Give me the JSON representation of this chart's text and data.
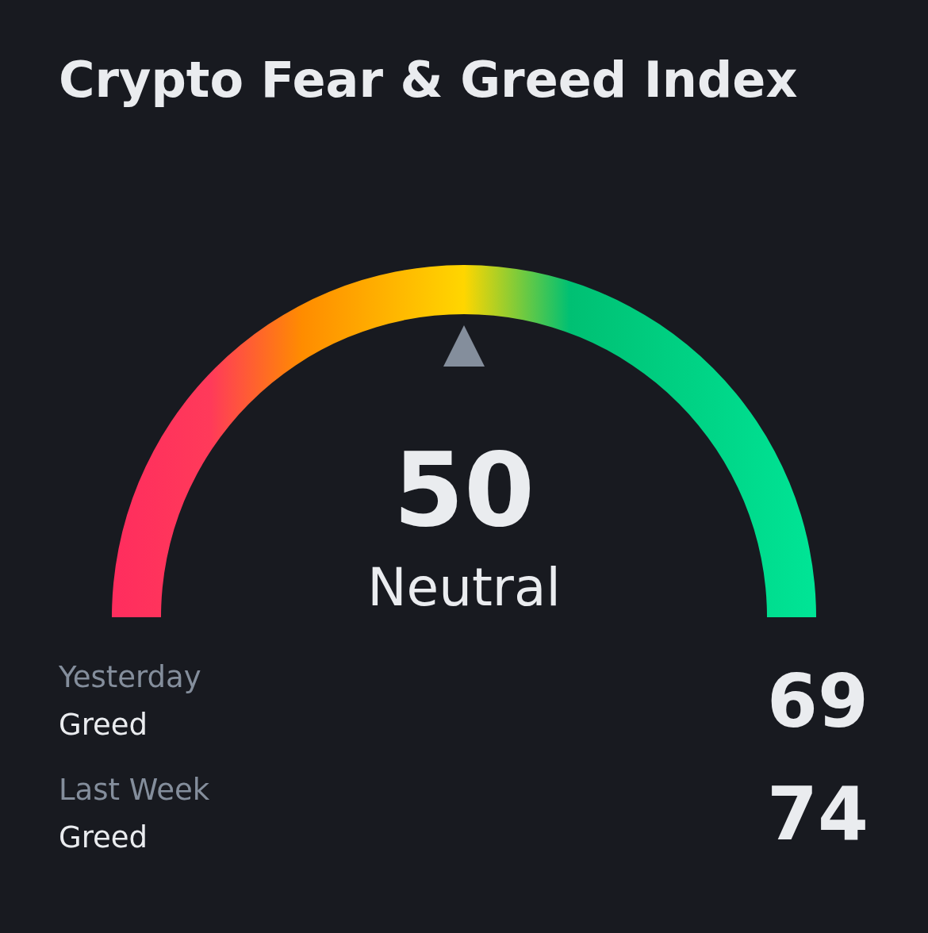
{
  "chart_data": [
    {
      "type": "other",
      "title": "Crypto Fear & Greed Index",
      "categories": [
        "Neutral"
      ],
      "values": [
        50
      ],
      "data_labels": true
    },
    {
      "type": "other",
      "categories": [
        "Yesterday",
        "Last Week"
      ],
      "values": [
        69,
        74
      ],
      "data_labels": true,
      "annotations": [
        "Greed",
        "Greed"
      ]
    }
  ]
}
